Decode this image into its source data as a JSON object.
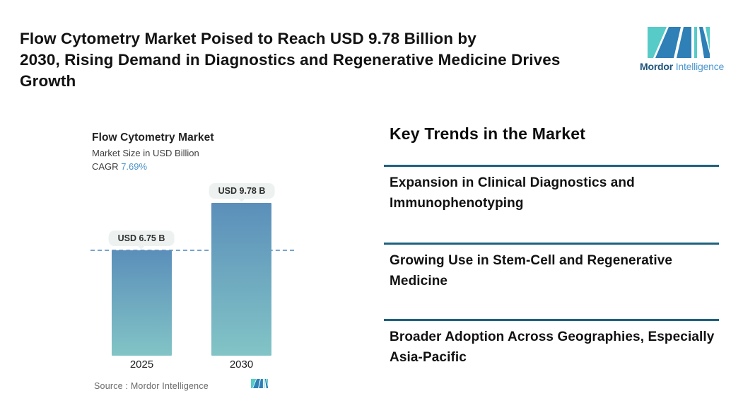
{
  "header": {
    "title_lines": [
      "Flow Cytometry Market Poised to Reach USD 9.78 Billion by",
      "2030, Rising Demand in Diagnostics and Regenerative Medicine Drives",
      "Growth"
    ]
  },
  "brand": {
    "name_primary": "Mordor",
    "name_secondary": "Intelligence",
    "colors": {
      "teal": "#57cbc7",
      "blue": "#2e80b6",
      "navy": "#20557a",
      "light_blue": "#4c96ce"
    }
  },
  "chart_data": {
    "type": "bar",
    "title": "Flow Cytometry Market",
    "subtitle": "Market Size in USD Billion",
    "cagr_label": "CAGR",
    "cagr_value": "7.69%",
    "categories": [
      "2025",
      "2030"
    ],
    "values": [
      6.75,
      9.78
    ],
    "value_labels": [
      "USD 6.75 B",
      "USD 9.78 B"
    ],
    "unit": "USD Billion",
    "reference_line_value": 6.75,
    "ylim": [
      0,
      9.78
    ],
    "grid": "off",
    "bar_gradient": [
      "#5b8fba",
      "#82c4c6"
    ],
    "reference_line_color": "#77a3cd",
    "source_label": "Source :  Mordor Intelligence"
  },
  "key_trends": {
    "heading": "Key Trends in the Market",
    "divider_color": "#1e627f",
    "items": [
      "Expansion in Clinical Diagnostics and Immunophenotyping",
      "Growing Use in Stem-Cell and Regenerative Medicine",
      "Broader Adoption Across Geographies, Especially Asia-Pacific"
    ]
  }
}
